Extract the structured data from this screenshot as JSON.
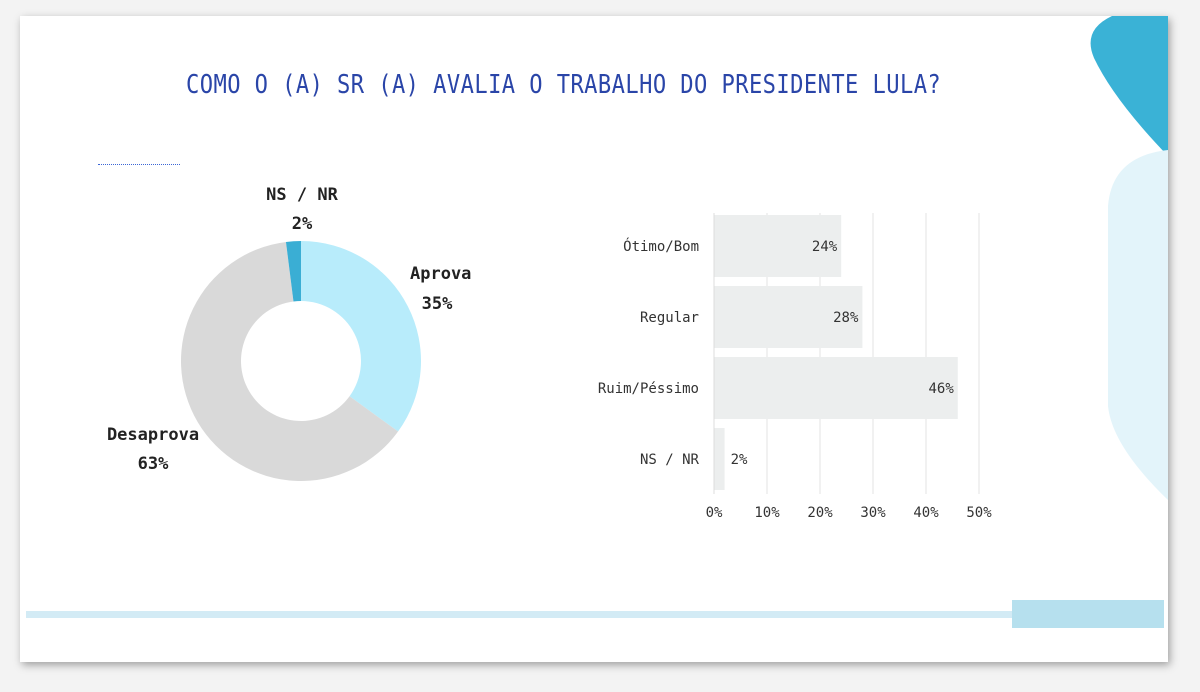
{
  "title": "COMO O (A) SR (A) AVALIA O TRABALHO DO PRESIDENTE LULA?",
  "colors": {
    "title": "#2a45a8",
    "aprova": "#b8ecfb",
    "desaprova": "#d9d9d9",
    "nsnr": "#3aaed4",
    "bars": "#eceeee",
    "accent": "#3ab2d6",
    "accent_light": "#e3f4fa"
  },
  "chart_data": [
    {
      "type": "pie",
      "slices": [
        {
          "label": "Aprova",
          "value": 35,
          "value_label": "35%"
        },
        {
          "label": "Desaprova",
          "value": 63,
          "value_label": "63%"
        },
        {
          "label": "NS / NR",
          "value": 2,
          "value_label": "2%"
        }
      ]
    },
    {
      "type": "bar",
      "orientation": "horizontal",
      "categories": [
        "Ótimo/Bom",
        "Regular",
        "Ruim/Péssimo",
        "NS / NR"
      ],
      "values": [
        24,
        28,
        46,
        2
      ],
      "value_labels": [
        "24%",
        "28%",
        "46%",
        "2%"
      ],
      "xlim": [
        0,
        50
      ],
      "xticks": [
        "0%",
        "10%",
        "20%",
        "30%",
        "40%",
        "50%"
      ],
      "grid": true
    }
  ]
}
